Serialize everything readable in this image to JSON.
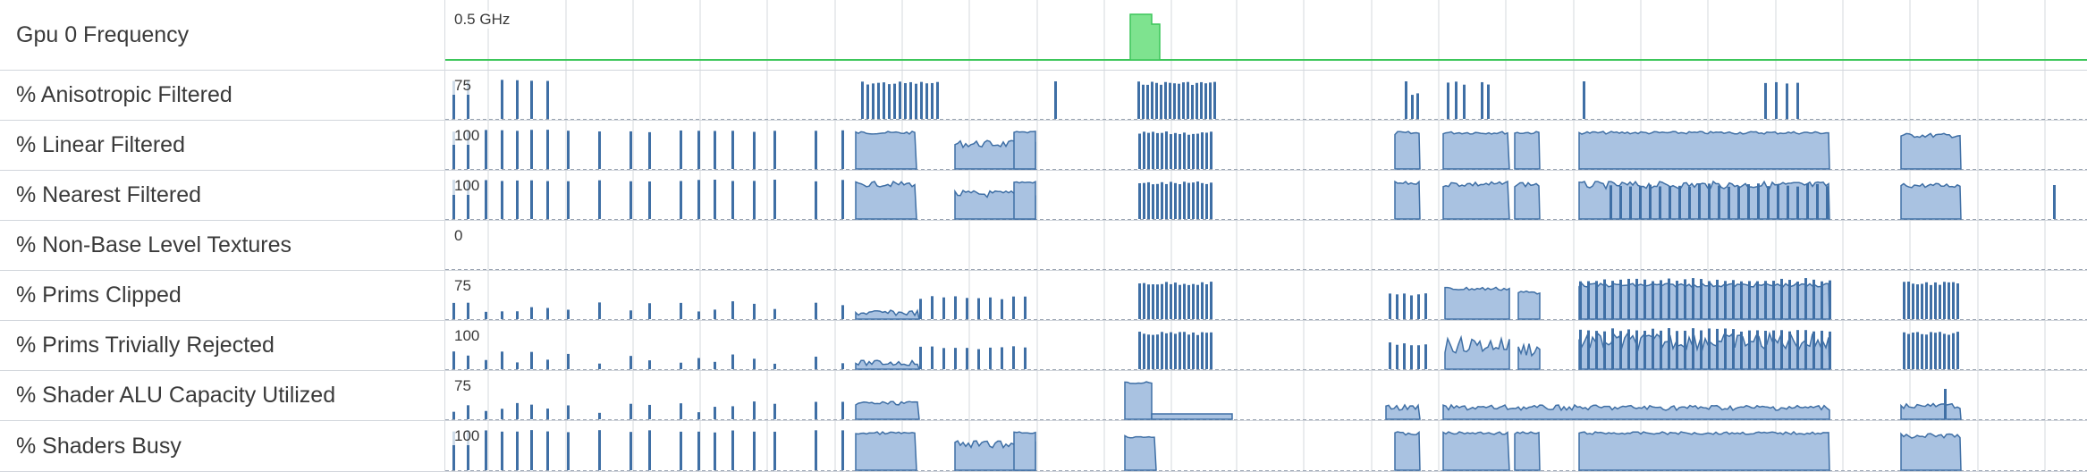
{
  "tracks": [
    {
      "label": "Gpu 0 Frequency",
      "scale": "0.5 GHz",
      "kind": "frequency"
    },
    {
      "label": "% Anisotropic Filtered",
      "scale": "75"
    },
    {
      "label": "% Linear Filtered",
      "scale": "100"
    },
    {
      "label": "% Nearest Filtered",
      "scale": "100"
    },
    {
      "label": "% Non-Base Level Textures",
      "scale": "0"
    },
    {
      "label": "% Prims Clipped",
      "scale": "75"
    },
    {
      "label": "% Prims Trivially Rejected",
      "scale": "100"
    },
    {
      "label": "% Shader ALU Capacity Utilized",
      "scale": "75"
    },
    {
      "label": "% Shaders Busy",
      "scale": "100"
    }
  ],
  "colors": {
    "bar": "#3f6fa5",
    "fill": "#a9c2e1",
    "freq_line": "#3cc65a",
    "freq_fill": "#7ee38f",
    "grid": "#d5d9de",
    "separator": "#9aa4b2"
  }
}
